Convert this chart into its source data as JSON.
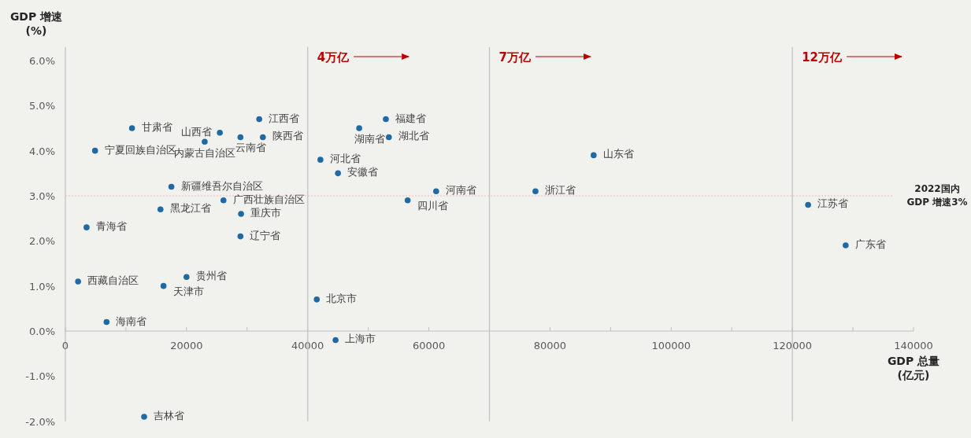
{
  "chart_data": {
    "type": "scatter",
    "xlabel": "GDP 总量\n(亿元)",
    "ylabel": "GDP 增速\n(%)",
    "x": [
      11000,
      4900,
      25500,
      32000,
      28900,
      32600,
      23000,
      48500,
      52900,
      53400,
      42100,
      45000,
      87200,
      17500,
      26100,
      15700,
      29000,
      61200,
      56500,
      77600,
      3500,
      28900,
      122600,
      128800,
      2100,
      20000,
      16200,
      41500,
      6800,
      44600,
      13000
    ],
    "series": [
      {
        "color": "#1f6aa5",
        "values": [
          4.5,
          4.0,
          4.4,
          4.7,
          4.3,
          4.3,
          4.2,
          4.5,
          4.7,
          4.3,
          3.8,
          3.5,
          3.9,
          3.2,
          2.9,
          2.7,
          2.6,
          3.1,
          2.9,
          3.1,
          2.3,
          2.1,
          2.8,
          1.9,
          1.1,
          1.2,
          1.0,
          0.7,
          0.2,
          -0.2,
          -1.9
        ]
      }
    ],
    "marker": "circle",
    "xlim": [
      0,
      140000
    ],
    "ylim": [
      -2,
      6.3
    ],
    "xticks": [
      0,
      {
        "value": 10000,
        "label": null
      },
      20000,
      {
        "value": 30000,
        "label": null
      },
      40000,
      {
        "value": 50000,
        "label": null
      },
      60000,
      {
        "value": 70000,
        "label": null
      },
      80000,
      {
        "value": 90000,
        "label": null
      },
      100000,
      {
        "value": 110000,
        "label": null
      },
      120000,
      {
        "value": 130000,
        "label": null
      },
      140000
    ],
    "yticks": [
      {
        "value": -2,
        "label": "-2.0%"
      },
      {
        "value": -1,
        "label": "-1.0%"
      },
      {
        "value": 0,
        "label": "0.0%"
      },
      {
        "value": 1,
        "label": "1.0%"
      },
      {
        "value": 2,
        "label": "2.0%"
      },
      {
        "value": 3,
        "label": "3.0%"
      },
      {
        "value": 4,
        "label": "4.0%"
      },
      {
        "value": 5,
        "label": "5.0%"
      },
      {
        "value": 6,
        "label": "6.0%"
      }
    ],
    "ref_lines": [
      {
        "axis": "x",
        "value": 40000,
        "label": "4万亿",
        "color": "#bfbfbf"
      },
      {
        "axis": "x",
        "value": 70000,
        "label": "7万亿",
        "color": "#bfbfbf"
      },
      {
        "axis": "x",
        "value": 120000,
        "label": "12万亿",
        "color": "#bfbfbf"
      },
      {
        "axis": "y",
        "value": 3,
        "label": "2022国内\nGDP 增速3%",
        "color": "#f4b6c2",
        "line_style": "dotted"
      }
    ],
    "annotations": [
      {
        "text": "甘肃省",
        "x": 11000,
        "y": 4.5
      },
      {
        "text": "宁夏回族自治区",
        "x": 4900,
        "y": 4.0
      },
      {
        "text": "山西省",
        "x": 25500,
        "y": 4.4
      },
      {
        "text": "江西省",
        "x": 32000,
        "y": 4.7
      },
      {
        "text": "云南省",
        "x": 28900,
        "y": 4.3
      },
      {
        "text": "陕西省",
        "x": 32600,
        "y": 4.3
      },
      {
        "text": "内蒙古自治区",
        "x": 23000,
        "y": 4.2
      },
      {
        "text": "湖南省",
        "x": 48500,
        "y": 4.5
      },
      {
        "text": "福建省",
        "x": 52900,
        "y": 4.7
      },
      {
        "text": "湖北省",
        "x": 53400,
        "y": 4.3
      },
      {
        "text": "河北省",
        "x": 42100,
        "y": 3.8
      },
      {
        "text": "安徽省",
        "x": 45000,
        "y": 3.5
      },
      {
        "text": "山东省",
        "x": 87200,
        "y": 3.9
      },
      {
        "text": "新疆维吾尔自治区",
        "x": 17500,
        "y": 3.2
      },
      {
        "text": "广西壮族自治区",
        "x": 26100,
        "y": 2.9
      },
      {
        "text": "黑龙江省",
        "x": 15700,
        "y": 2.7
      },
      {
        "text": "重庆市",
        "x": 29000,
        "y": 2.6
      },
      {
        "text": "河南省",
        "x": 61200,
        "y": 3.1
      },
      {
        "text": "四川省",
        "x": 56500,
        "y": 2.9
      },
      {
        "text": "浙江省",
        "x": 77600,
        "y": 3.1
      },
      {
        "text": "青海省",
        "x": 3500,
        "y": 2.3
      },
      {
        "text": "辽宁省",
        "x": 28900,
        "y": 2.1
      },
      {
        "text": "江苏省",
        "x": 122600,
        "y": 2.8
      },
      {
        "text": "广东省",
        "x": 128800,
        "y": 1.9
      },
      {
        "text": "西藏自治区",
        "x": 2100,
        "y": 1.1
      },
      {
        "text": "贵州省",
        "x": 20000,
        "y": 1.2
      },
      {
        "text": "天津市",
        "x": 16200,
        "y": 1.0
      },
      {
        "text": "北京市",
        "x": 41500,
        "y": 0.7
      },
      {
        "text": "海南省",
        "x": 6800,
        "y": 0.2
      },
      {
        "text": "上海市",
        "x": 44600,
        "y": -0.2
      },
      {
        "text": "吉林省",
        "x": 13000,
        "y": -1.9
      }
    ]
  }
}
